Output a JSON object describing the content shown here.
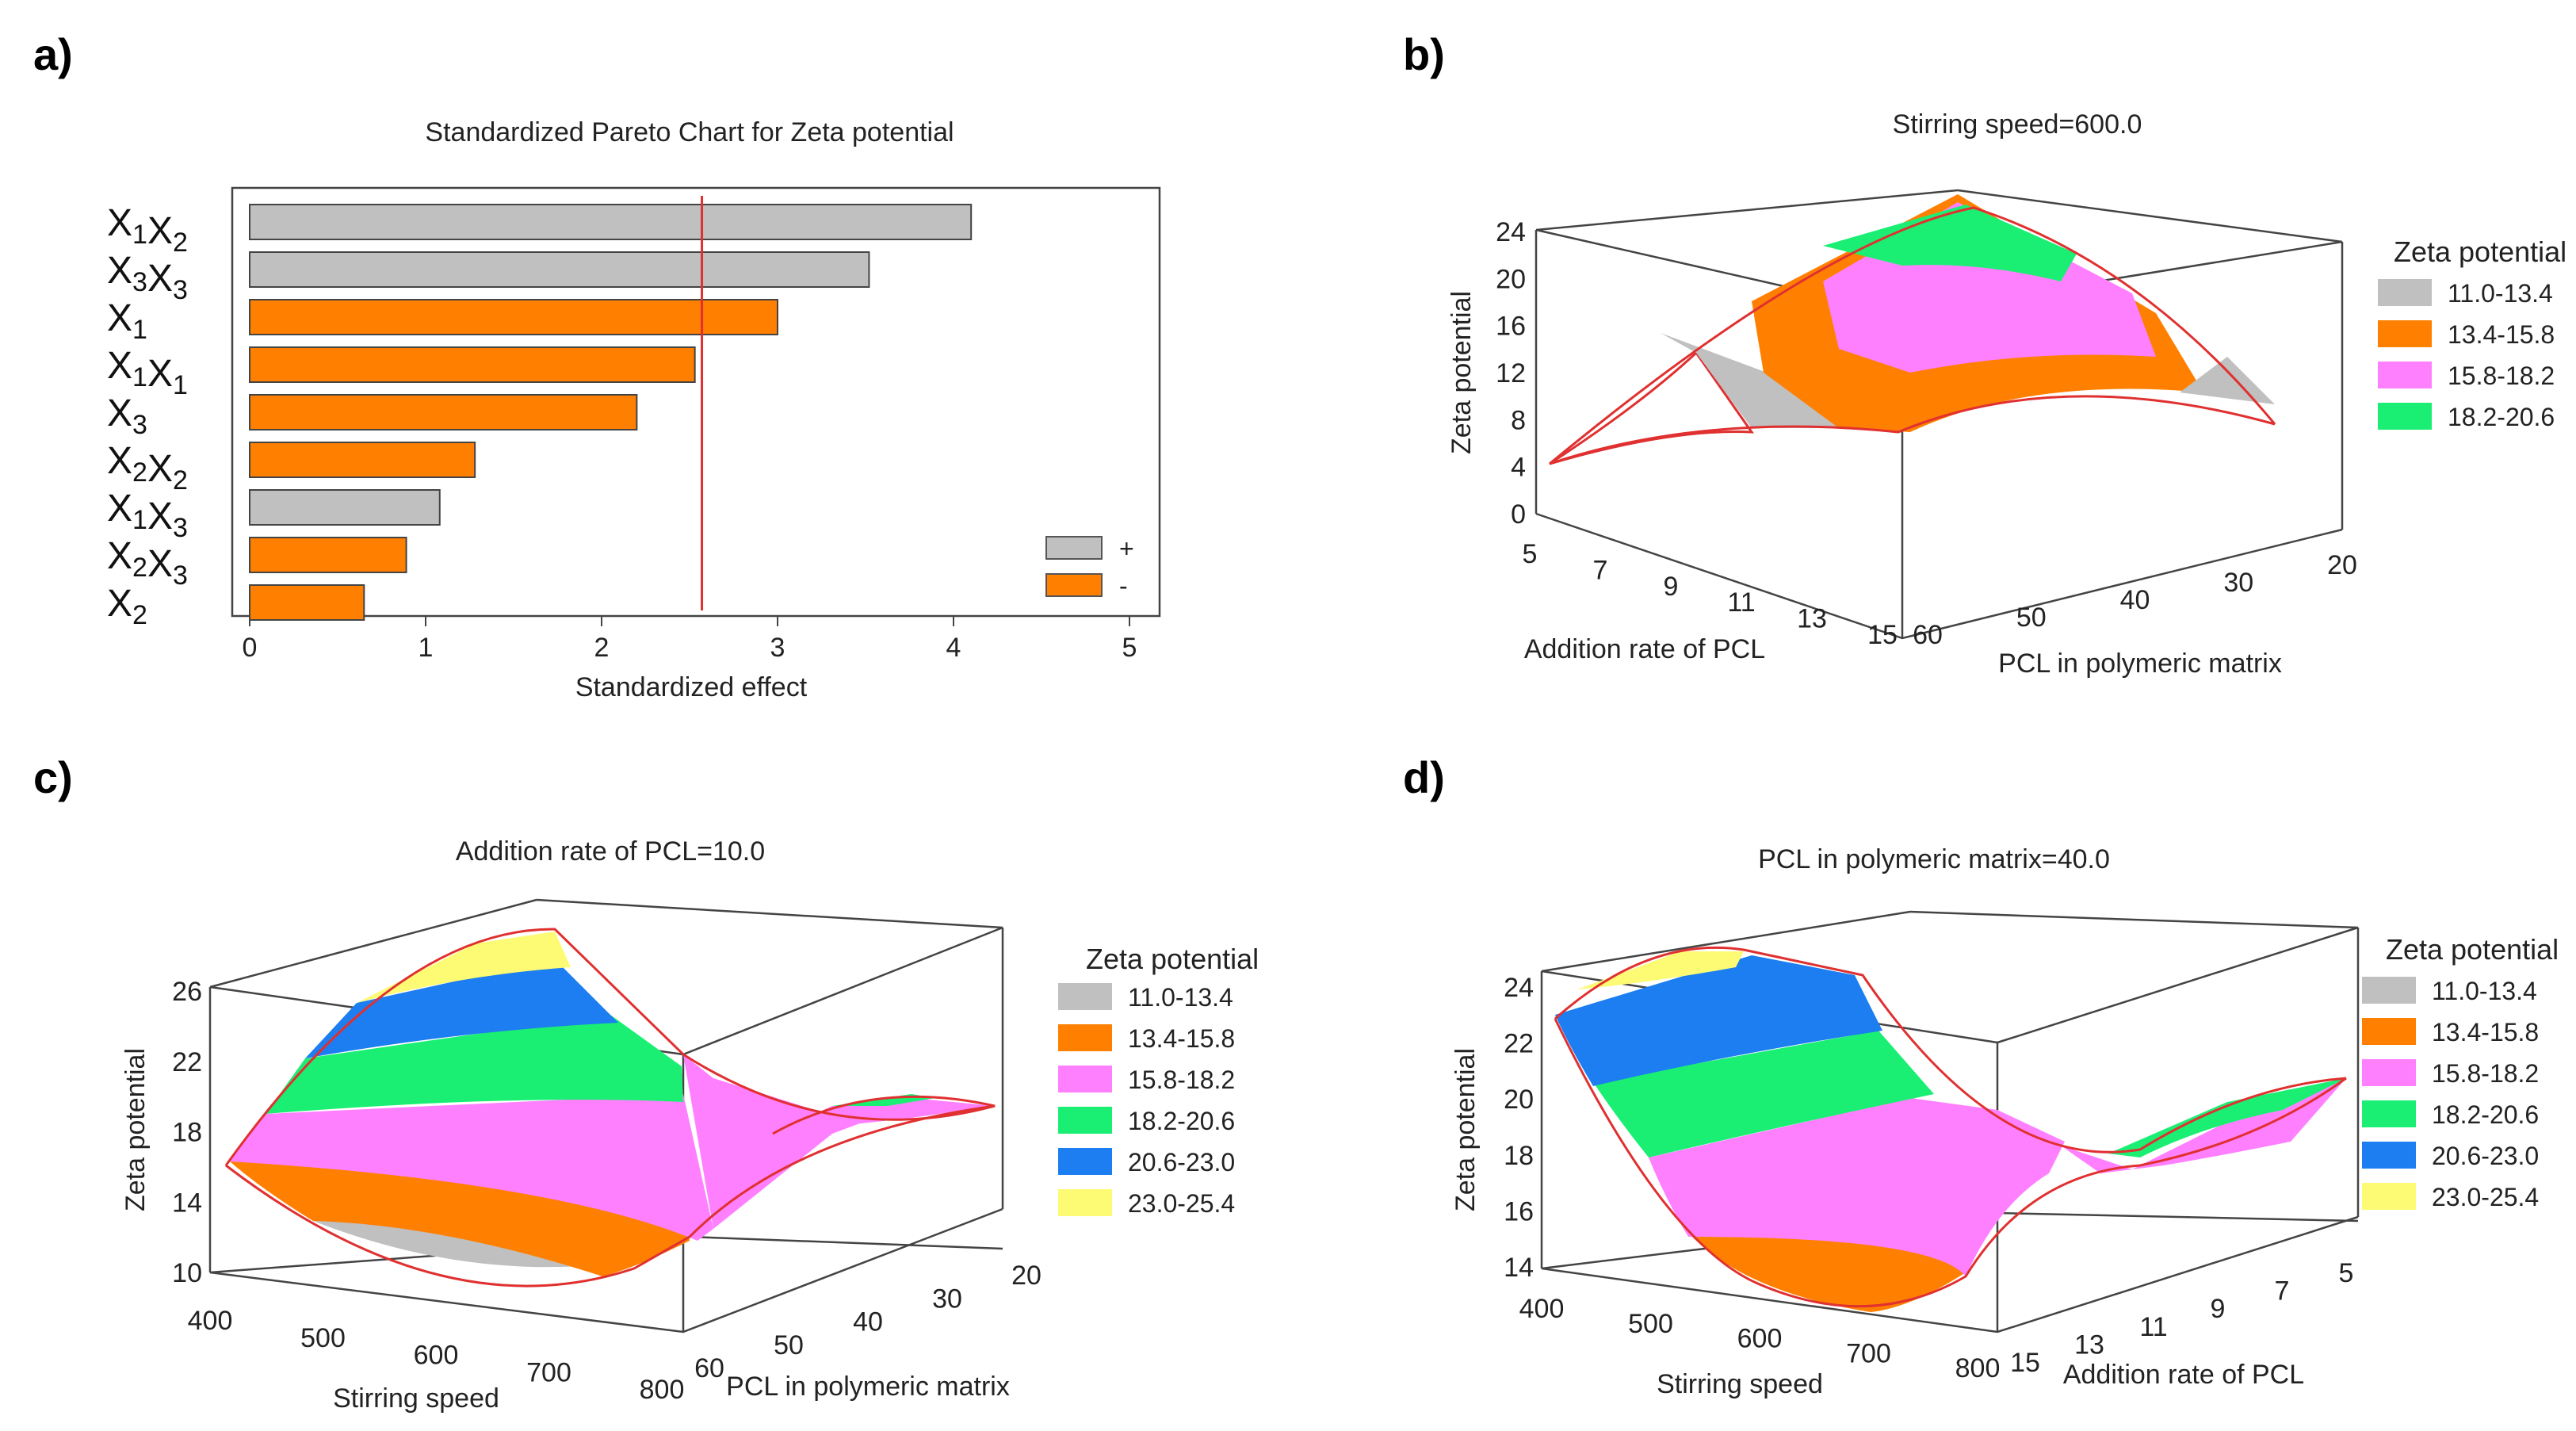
{
  "colors": {
    "gray": "#c0c0c0",
    "orange": "#ff7f00",
    "magenta": "#ff80ff",
    "green": "#1aef74",
    "blue": "#1c7ef0",
    "yellow": "#fdfa74",
    "red": "#e03030",
    "axis": "#444444"
  },
  "panels": {
    "a": {
      "letter": "a)",
      "chart_data": {
        "type": "bar",
        "orientation": "horizontal",
        "title": "Standardized Pareto Chart for Zeta potential",
        "xlabel": "Standardized effect",
        "xlim": [
          0,
          5
        ],
        "xticks": [
          "0",
          "1",
          "2",
          "3",
          "4",
          "5"
        ],
        "reference_line": 2.57,
        "categories": [
          {
            "base": "X",
            "sub": "1",
            "base2": "X",
            "sub2": "2"
          },
          {
            "base": "X",
            "sub": "3",
            "base2": "X",
            "sub2": "3"
          },
          {
            "base": "X",
            "sub": "1",
            "base2": "",
            "sub2": ""
          },
          {
            "base": "X",
            "sub": "1",
            "base2": "X",
            "sub2": "1"
          },
          {
            "base": "X",
            "sub": "3",
            "base2": "",
            "sub2": ""
          },
          {
            "base": "X",
            "sub": "2",
            "base2": "X",
            "sub2": "2"
          },
          {
            "base": "X",
            "sub": "1",
            "base2": "X",
            "sub2": "3"
          },
          {
            "base": "X",
            "sub": "2",
            "base2": "X",
            "sub2": "3"
          },
          {
            "base": "X",
            "sub": "2",
            "base2": "",
            "sub2": ""
          }
        ],
        "values": [
          4.1,
          3.52,
          3.0,
          2.53,
          2.2,
          1.28,
          1.08,
          0.89,
          0.65
        ],
        "signs": [
          "+",
          "+",
          "-",
          "-",
          "-",
          "-",
          "+",
          "-",
          "-"
        ],
        "legend": [
          {
            "label": "+",
            "color": "#c0c0c0"
          },
          {
            "label": "-",
            "color": "#ff7f00"
          }
        ]
      }
    },
    "b": {
      "letter": "b)",
      "chart_data": {
        "type": "surface3d",
        "title": "Stirring speed=600.0",
        "zlabel": "Zeta potential",
        "xlabel": "Addition rate of PCL",
        "ylabel": "PCL in polymeric matrix",
        "zticks": [
          "0",
          "4",
          "8",
          "12",
          "16",
          "20",
          "24"
        ],
        "xticks": [
          "5",
          "7",
          "9",
          "11",
          "13",
          "15"
        ],
        "yticks": [
          "60",
          "50",
          "40",
          "30",
          "20"
        ],
        "legend_title": "Zeta potential",
        "legend": [
          "11.0-13.4",
          "13.4-15.8",
          "15.8-18.2",
          "18.2-20.6"
        ]
      }
    },
    "c": {
      "letter": "c)",
      "chart_data": {
        "type": "surface3d",
        "title": "Addition rate of PCL=10.0",
        "zlabel": "Zeta potential",
        "xlabel": "Stirring speed",
        "ylabel": "PCL in polymeric matrix",
        "zticks": [
          "10",
          "14",
          "18",
          "22",
          "26"
        ],
        "xticks": [
          "400",
          "500",
          "600",
          "700",
          "800"
        ],
        "yticks": [
          "60",
          "50",
          "40",
          "30",
          "20"
        ],
        "legend_title": "Zeta potential",
        "legend": [
          "11.0-13.4",
          "13.4-15.8",
          "15.8-18.2",
          "18.2-20.6",
          "20.6-23.0",
          "23.0-25.4"
        ]
      }
    },
    "d": {
      "letter": "d)",
      "chart_data": {
        "type": "surface3d",
        "title": "PCL in polymeric matrix=40.0",
        "zlabel": "Zeta potential",
        "xlabel": "Stirring speed",
        "ylabel": "Addition rate of PCL",
        "zticks": [
          "14",
          "16",
          "18",
          "20",
          "22",
          "24"
        ],
        "xticks": [
          "400",
          "500",
          "600",
          "700",
          "800"
        ],
        "yticks": [
          "15",
          "13",
          "11",
          "9",
          "7",
          "5"
        ],
        "legend_title": "Zeta potential",
        "legend": [
          "11.0-13.4",
          "13.4-15.8",
          "15.8-18.2",
          "18.2-20.6",
          "20.6-23.0",
          "23.0-25.4"
        ]
      }
    }
  }
}
